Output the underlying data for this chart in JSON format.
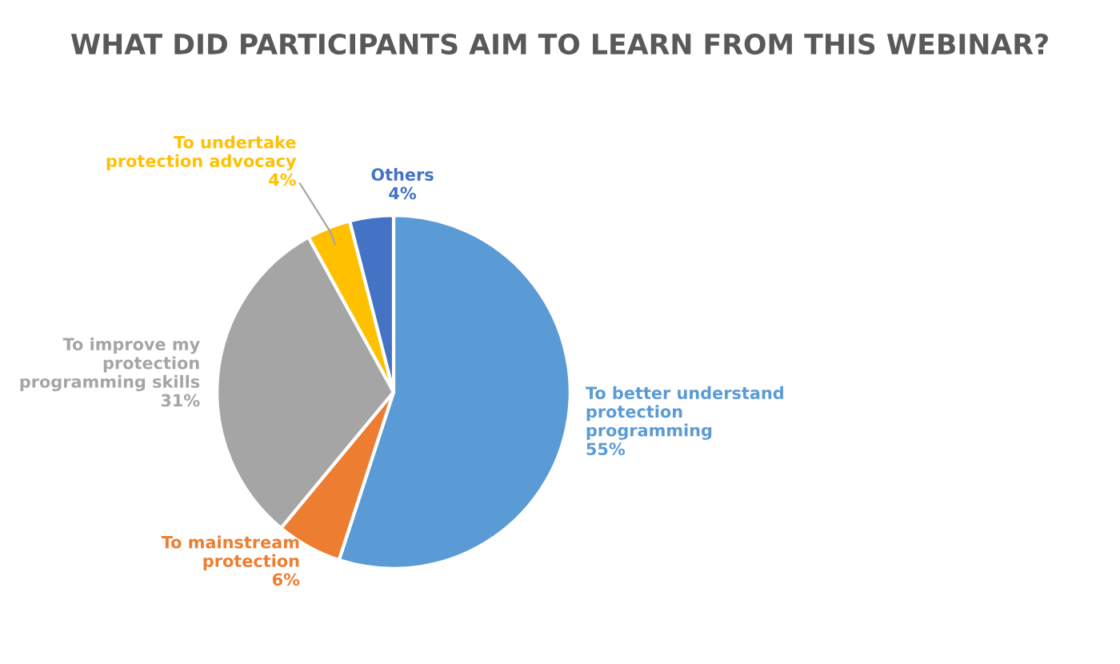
{
  "chart_data": {
    "type": "pie",
    "title": "WHAT DID PARTICIPANTS AIM TO LEARN FROM THIS WEBINAR?",
    "categories": [
      "To better understand\nprotection\nprogramming",
      "To mainstream\nprotection",
      "To improve my\nprotection\nprogramming skills",
      "To undertake\nprotection advocacy",
      "Others"
    ],
    "values": [
      55,
      6,
      31,
      4,
      4
    ],
    "value_labels": [
      "55%",
      "6%",
      "31%",
      "4%",
      "4%"
    ],
    "colors": [
      "#5b9bd5",
      "#ed7d31",
      "#a5a5a5",
      "#ffc000",
      "#4472c4"
    ]
  }
}
